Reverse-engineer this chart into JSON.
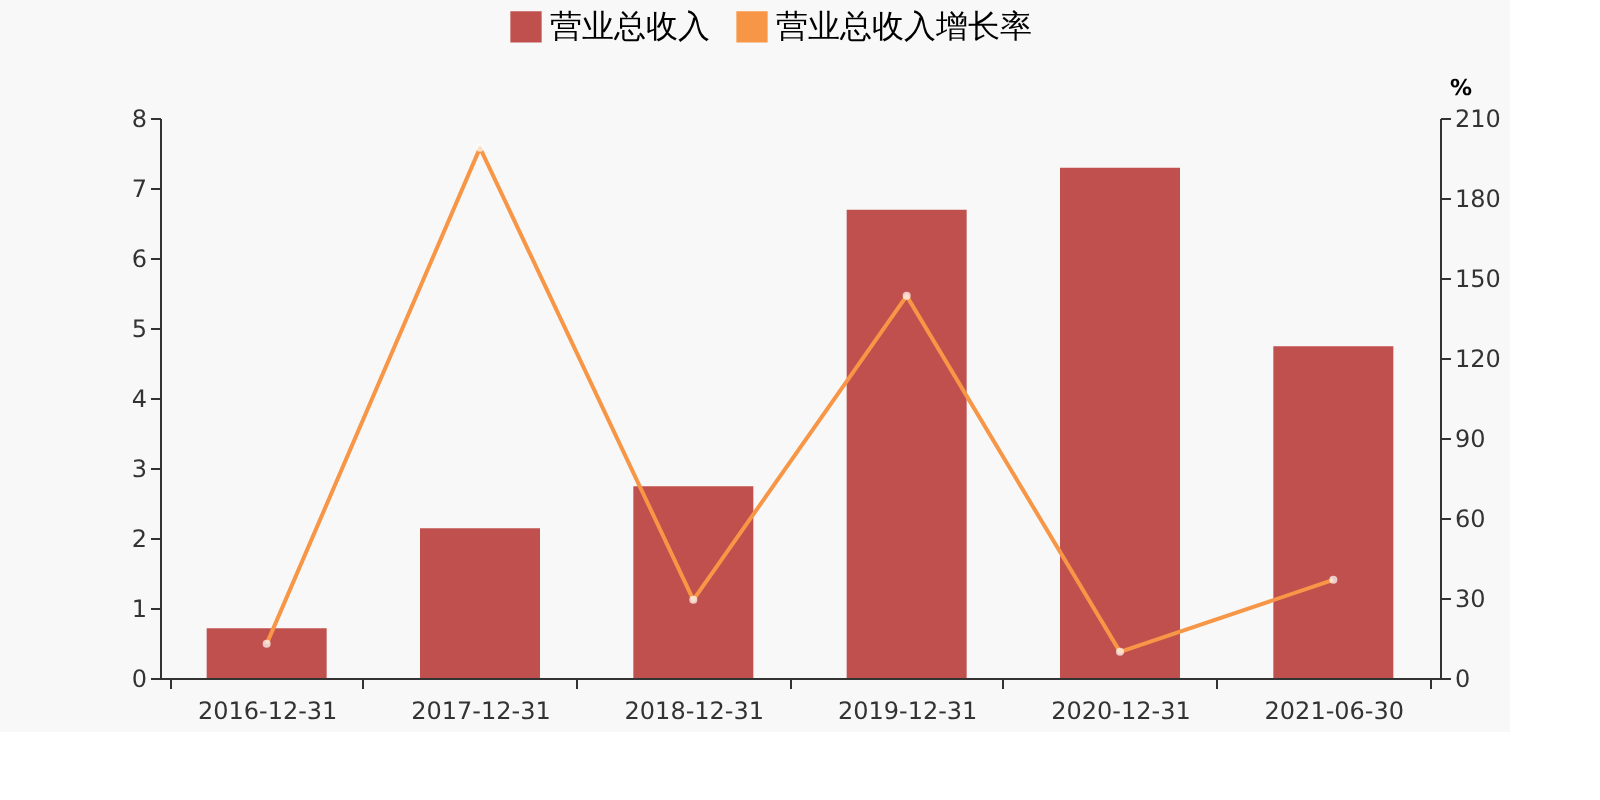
{
  "chart_data": {
    "type": "bar",
    "y2label": "%",
    "categories": [
      "2016-12-31",
      "2017-12-31",
      "2018-12-31",
      "2019-12-31",
      "2020-12-31",
      "2021-06-30"
    ],
    "series": [
      {
        "name": "营业总收入",
        "type": "bar",
        "color": "#c0504d",
        "values": [
          0.71,
          2.14,
          2.74,
          6.69,
          7.29,
          4.74
        ]
      },
      {
        "name": "营业总收入增长率",
        "type": "line",
        "axis": "y2",
        "color": "#f79646",
        "marker": "circle",
        "values": [
          12.8,
          198.8,
          29.3,
          143.3,
          9.8,
          36.8
        ]
      }
    ],
    "ylim": [
      0,
      8
    ],
    "yticks": [
      0,
      1,
      2,
      3,
      4,
      5,
      6,
      7,
      8
    ],
    "y2lim": [
      0,
      210
    ],
    "y2ticks": [
      0,
      30,
      60,
      90,
      120,
      150,
      180,
      210
    ],
    "grid": false,
    "legend": "top"
  }
}
